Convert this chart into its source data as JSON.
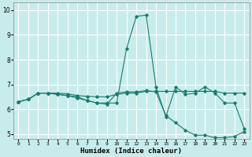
{
  "xlabel": "Humidex (Indice chaleur)",
  "background_color": "#c8ecec",
  "grid_color": "#ffffff",
  "line_color": "#1a7a6e",
  "xlim": [
    -0.5,
    23.5
  ],
  "ylim": [
    4.8,
    10.3
  ],
  "xticks": [
    0,
    1,
    2,
    3,
    4,
    5,
    6,
    7,
    8,
    9,
    10,
    11,
    12,
    13,
    14,
    15,
    16,
    17,
    18,
    19,
    20,
    21,
    22,
    23
  ],
  "yticks": [
    5,
    6,
    7,
    8,
    9,
    10
  ],
  "series": [
    {
      "x": [
        0,
        1,
        2,
        3,
        4,
        5,
        6,
        7,
        8,
        9,
        10,
        11,
        12,
        13,
        14,
        15,
        16,
        17,
        18,
        19,
        20,
        21,
        22,
        23
      ],
      "y": [
        6.3,
        6.4,
        6.65,
        6.65,
        6.6,
        6.55,
        6.5,
        6.35,
        6.25,
        6.25,
        6.25,
        8.45,
        9.75,
        9.8,
        6.9,
        5.7,
        6.9,
        6.6,
        6.65,
        6.9,
        6.65,
        6.25,
        6.25,
        5.2
      ]
    },
    {
      "x": [
        0,
        1,
        2,
        3,
        4,
        5,
        6,
        7,
        8,
        9,
        10,
        11,
        12,
        13,
        14,
        15,
        16,
        17,
        18,
        19,
        20,
        21,
        22,
        23
      ],
      "y": [
        6.3,
        6.4,
        6.65,
        6.65,
        6.6,
        6.55,
        6.45,
        6.35,
        6.25,
        6.2,
        6.65,
        6.7,
        6.7,
        6.75,
        6.7,
        5.75,
        5.45,
        5.15,
        4.95,
        4.95,
        4.85,
        4.85,
        4.9,
        5.1
      ]
    },
    {
      "x": [
        0,
        1,
        2,
        3,
        4,
        5,
        6,
        7,
        8,
        9,
        10,
        11,
        12,
        13,
        14,
        15,
        16,
        17,
        18,
        19,
        20,
        21,
        22,
        23
      ],
      "y": [
        6.3,
        6.4,
        6.65,
        6.65,
        6.65,
        6.62,
        6.55,
        6.52,
        6.5,
        6.5,
        6.6,
        6.65,
        6.65,
        6.72,
        6.72,
        6.72,
        6.72,
        6.72,
        6.72,
        6.72,
        6.72,
        6.65,
        6.65,
        6.65
      ]
    }
  ]
}
